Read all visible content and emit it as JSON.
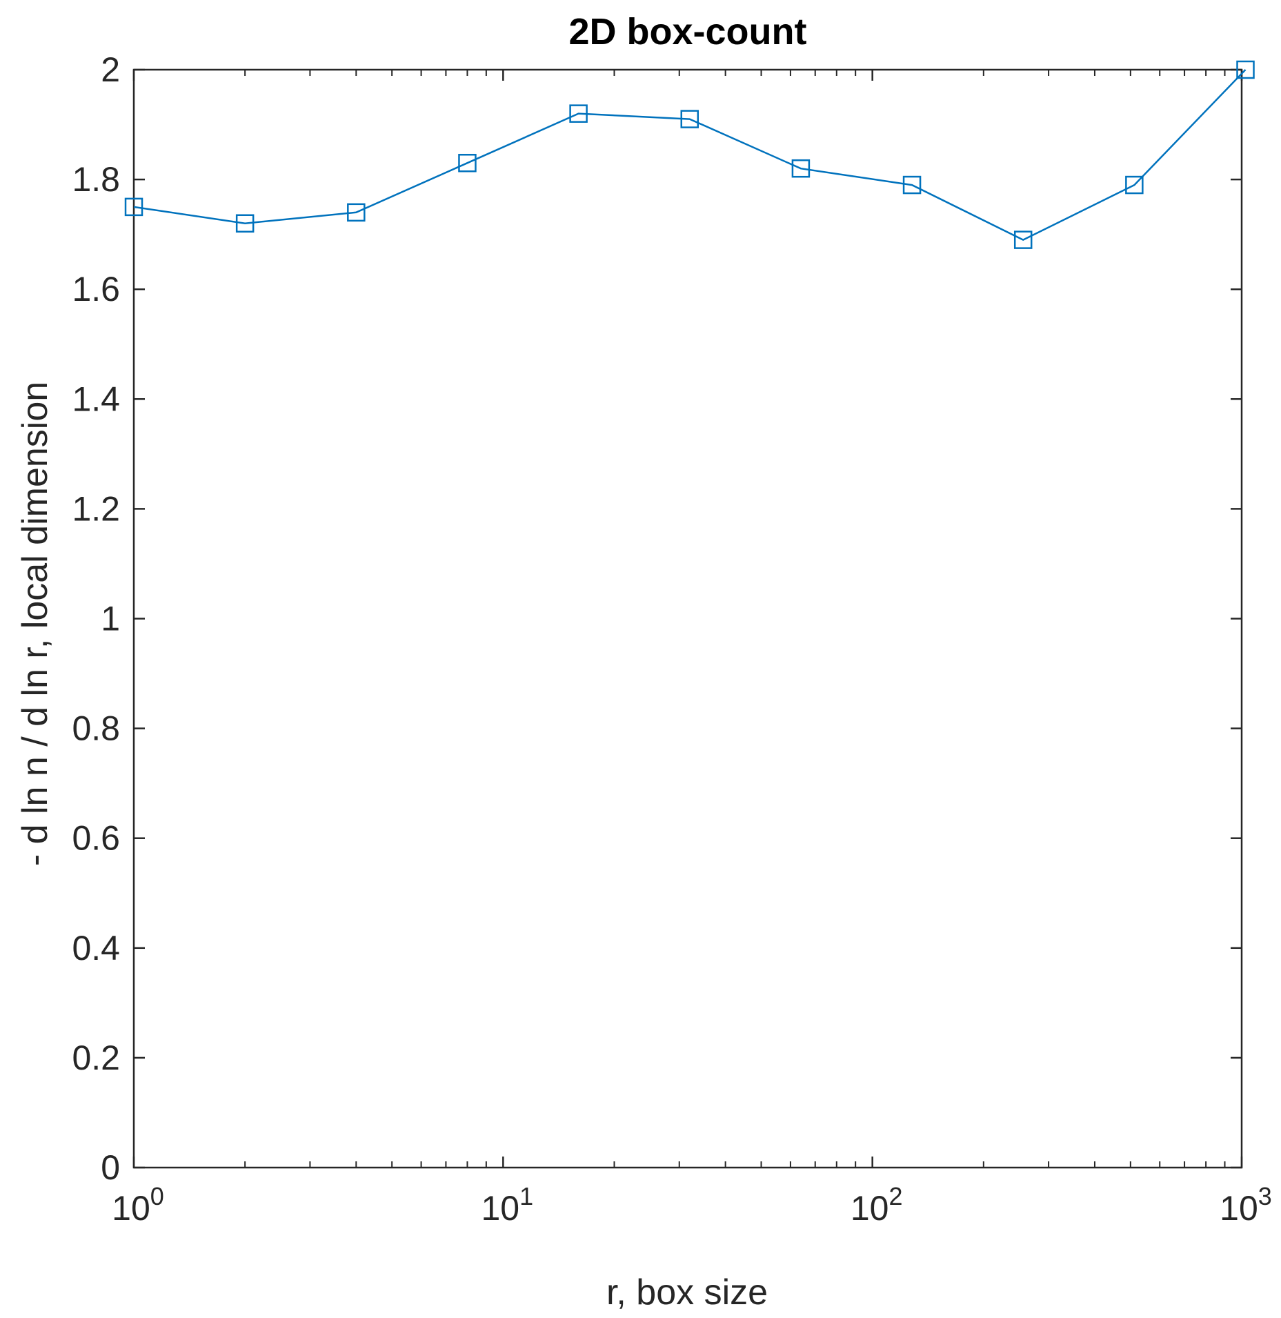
{
  "chart_data": {
    "type": "line",
    "title": "2D box-count",
    "xlabel": "r, box size",
    "ylabel": "- d ln n / d ln r, local dimension",
    "xscale": "log",
    "xlim": [
      1,
      1000
    ],
    "ylim": [
      0,
      2
    ],
    "grid": false,
    "x_ticks": [
      {
        "base": "10",
        "exp": "0",
        "value": 1
      },
      {
        "base": "10",
        "exp": "1",
        "value": 10
      },
      {
        "base": "10",
        "exp": "2",
        "value": 100
      },
      {
        "base": "10",
        "exp": "3",
        "value": 1000
      }
    ],
    "y_ticks": [
      "0",
      "0.2",
      "0.4",
      "0.6",
      "0.8",
      "1",
      "1.2",
      "1.4",
      "1.6",
      "1.8",
      "2"
    ],
    "series": [
      {
        "color": "#0072bd",
        "marker": "square",
        "x": [
          1,
          2,
          4,
          8,
          16,
          32,
          64,
          128,
          256,
          512,
          1024
        ],
        "y": [
          1.75,
          1.72,
          1.74,
          1.83,
          1.92,
          1.91,
          1.82,
          1.79,
          1.69,
          1.79,
          2.0
        ]
      }
    ]
  }
}
